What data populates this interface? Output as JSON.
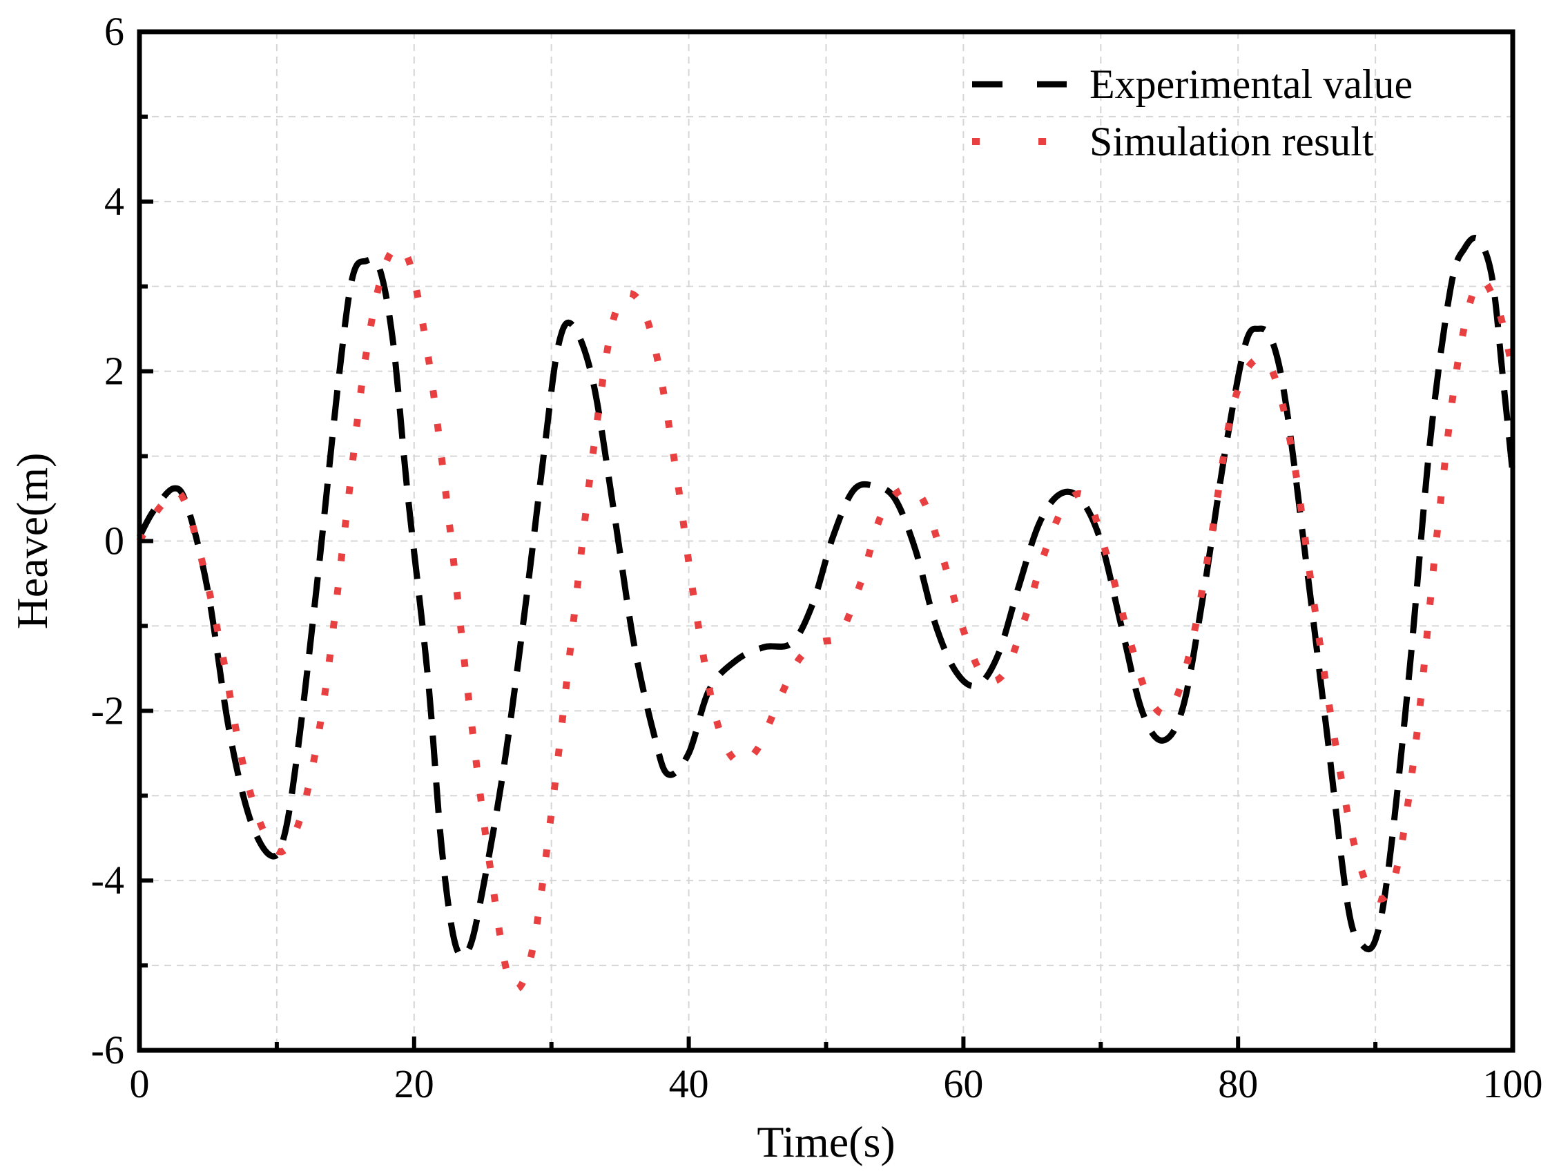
{
  "chart_data": {
    "type": "line",
    "title": "",
    "xlabel": "Time(s)",
    "ylabel": "Heave(m)",
    "xlim": [
      0,
      100
    ],
    "ylim": [
      -6,
      6
    ],
    "xticks": [
      0,
      20,
      40,
      60,
      80,
      100
    ],
    "xtick_labels": [
      "0",
      "20",
      "40",
      "60",
      "80",
      "100"
    ],
    "yticks": [
      -6,
      -4,
      -2,
      0,
      2,
      4,
      6
    ],
    "ytick_labels": [
      "-6",
      "-4",
      "-2",
      "0",
      "2",
      "4",
      "6"
    ],
    "grid": true,
    "legend_position": "top-right",
    "series": [
      {
        "name": "Experimental value",
        "style": "dashed",
        "color": "#000000",
        "x": [
          0,
          1,
          2.5,
          3.5,
          5,
          6.5,
          8,
          9.5,
          10.5,
          11.5,
          13,
          14.5,
          15.5,
          16.5,
          17.5,
          18.5,
          19.5,
          21,
          22,
          23,
          24,
          25,
          26.5,
          28,
          29.5,
          30.5,
          31.5,
          33,
          34.5,
          36,
          37.5,
          38.5,
          40,
          41.5,
          43.5,
          45.5,
          47.5,
          49,
          50.5,
          52,
          53.5,
          55,
          56.5,
          58,
          59.5,
          61,
          62.5,
          64,
          65.5,
          67,
          68.5,
          70,
          71.5,
          73,
          74.5,
          76,
          77.5,
          79,
          80.5,
          81.5,
          82.5,
          83.5,
          85,
          86.5,
          88,
          89,
          90,
          91,
          92.5,
          94,
          95.5,
          96.5,
          97.5,
          98.5,
          99.3,
          100
        ],
        "y": [
          0.05,
          0.35,
          0.62,
          0.4,
          -0.6,
          -2.2,
          -3.25,
          -3.7,
          -3.5,
          -2.5,
          -0.4,
          1.9,
          3.1,
          3.3,
          3.2,
          2.3,
          0.6,
          -1.6,
          -3.6,
          -4.75,
          -4.8,
          -4.1,
          -2.7,
          -0.9,
          1.1,
          2.3,
          2.55,
          1.9,
          0.4,
          -1.2,
          -2.3,
          -2.75,
          -2.5,
          -1.75,
          -1.4,
          -1.25,
          -1.2,
          -0.75,
          0.05,
          0.6,
          0.65,
          0.5,
          -0.1,
          -1.0,
          -1.55,
          -1.7,
          -1.35,
          -0.55,
          0.2,
          0.55,
          0.5,
          0.0,
          -1.0,
          -2.0,
          -2.35,
          -1.95,
          -0.6,
          1.0,
          2.3,
          2.5,
          2.35,
          1.6,
          -0.3,
          -2.3,
          -4.3,
          -4.75,
          -4.7,
          -3.8,
          -1.5,
          1.2,
          3.0,
          3.45,
          3.55,
          3.1,
          1.9,
          0.8
        ]
      },
      {
        "name": "Simulation result",
        "style": "dotted",
        "color": "#e84040",
        "x": [
          0,
          1.5,
          3,
          4.5,
          6,
          7.5,
          9,
          10.5,
          12,
          13.5,
          15,
          16.5,
          18,
          19.5,
          21,
          22.5,
          24,
          25.5,
          27,
          28.5,
          30,
          31.5,
          33,
          34.5,
          36,
          37.5,
          39,
          40.5,
          42,
          43.5,
          45,
          46.5,
          48,
          49.5,
          51,
          52.5,
          54,
          55.5,
          57,
          58.5,
          60,
          61.5,
          63,
          64.5,
          66,
          67.5,
          69,
          70.5,
          72,
          73.5,
          75,
          76.5,
          78,
          79.5,
          81,
          82.5,
          84,
          85.5,
          87,
          88.5,
          90,
          91.5,
          93,
          94.5,
          96,
          97.5,
          99,
          100
        ],
        "y": [
          0,
          0.4,
          0.55,
          -0.2,
          -1.3,
          -2.6,
          -3.4,
          -3.65,
          -3.1,
          -1.8,
          0.2,
          2.2,
          3.3,
          3.35,
          2.2,
          0.3,
          -1.9,
          -3.8,
          -5.2,
          -4.9,
          -3.2,
          -1.1,
          1.0,
          2.6,
          2.9,
          2.3,
          0.9,
          -0.8,
          -2.1,
          -2.6,
          -2.45,
          -1.9,
          -1.4,
          -1.2,
          -1.1,
          -0.5,
          0.3,
          0.6,
          0.5,
          -0.2,
          -1.05,
          -1.6,
          -1.55,
          -0.9,
          -0.1,
          0.45,
          0.5,
          -0.2,
          -1.1,
          -1.85,
          -2.0,
          -1.3,
          0.0,
          1.5,
          2.1,
          2.0,
          1.0,
          -0.7,
          -2.3,
          -3.6,
          -4.2,
          -3.9,
          -2.3,
          0.1,
          2.1,
          3.05,
          2.7,
          2.0
        ]
      }
    ]
  }
}
